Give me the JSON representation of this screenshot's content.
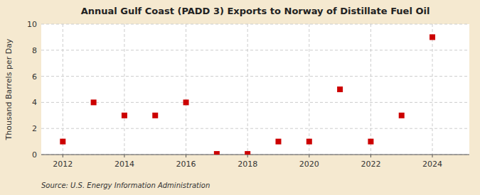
{
  "chart_data": {
    "type": "scatter",
    "title": "Annual Gulf Coast (PADD 3) Exports to Norway of Distillate Fuel Oil",
    "ylabel": "Thousand Barrels per Day",
    "source": "Source: U.S. Energy Information Administration",
    "x": [
      2012,
      2013,
      2014,
      2015,
      2016,
      2017,
      2018,
      2019,
      2020,
      2021,
      2022,
      2023,
      2024
    ],
    "values": [
      1,
      4,
      3,
      3,
      4,
      0.05,
      0.05,
      1,
      1,
      5,
      1,
      3,
      9
    ],
    "color": "#cc0000",
    "marker": "square",
    "xlim": [
      2011.3,
      2025.2
    ],
    "xticks": [
      2012,
      2014,
      2016,
      2018,
      2020,
      2022,
      2024
    ],
    "ylim": [
      0,
      10
    ],
    "yticks": [
      0,
      2,
      4,
      6,
      8,
      10
    ],
    "grid": true
  }
}
